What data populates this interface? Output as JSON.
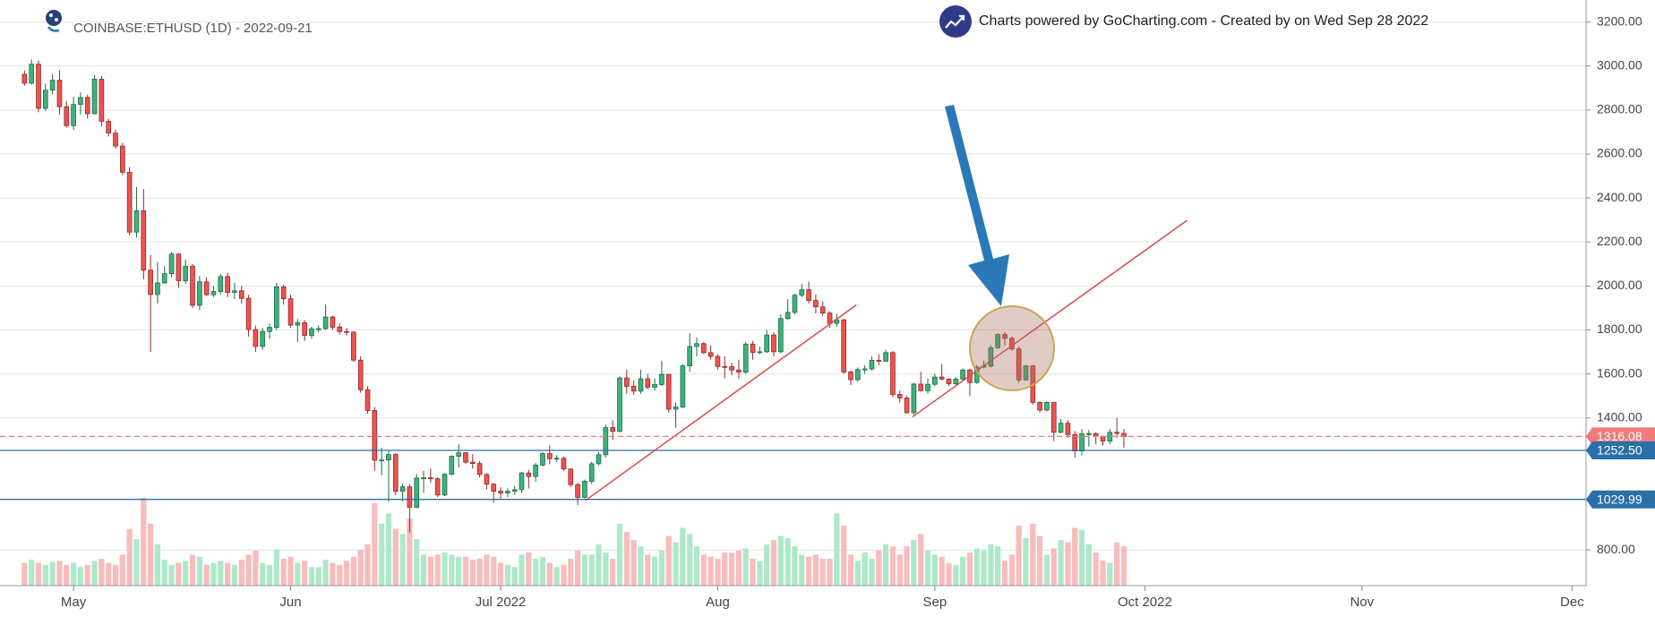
{
  "chart_data": {
    "type": "candlestick",
    "title": "COINBASE:ETHUSD (1D) - 2022-09-21",
    "credit": "Charts powered by GoCharting.com - Created by  on Wed Sep 28 2022",
    "open": [
      2962,
      2922,
      3008,
      2808,
      2890,
      2935,
      2815,
      2729,
      2825,
      2857,
      2783,
      2940,
      2749,
      2695,
      2636,
      2517,
      2245,
      2342,
      2072,
      1961,
      2014,
      2056,
      2145,
      2024,
      2090,
      1912,
      2019,
      1960,
      1975,
      2043,
      1971,
      1978,
      1944,
      1802,
      1725,
      1793,
      1812,
      1996,
      1942,
      1822,
      1833,
      1775,
      1805,
      1806,
      1859,
      1813,
      1793,
      1790,
      1663,
      1528,
      1434,
      1208,
      1209,
      1234,
      1067,
      1087,
      994,
      1127,
      1128,
      1124,
      1050,
      1144,
      1226,
      1242,
      1199,
      1193,
      1143,
      1099,
      1067,
      1059,
      1067,
      1074,
      1150,
      1134,
      1186,
      1238,
      1215,
      1217,
      1168,
      1097,
      1039,
      1112,
      1192,
      1233,
      1356,
      1339,
      1582,
      1544,
      1522,
      1578,
      1540,
      1552,
      1598,
      1440,
      1450,
      1637,
      1725,
      1738,
      1697,
      1680,
      1634,
      1633,
      1618,
      1608,
      1736,
      1698,
      1701,
      1777,
      1701,
      1852,
      1880,
      1958,
      1983,
      1934,
      1905,
      1877,
      1830,
      1846,
      1609,
      1574,
      1620,
      1623,
      1662,
      1658,
      1697,
      1507,
      1491,
      1424,
      1554,
      1524,
      1553,
      1586,
      1577,
      1556,
      1577,
      1618,
      1561,
      1631,
      1636,
      1719,
      1779,
      1762,
      1714,
      1573,
      1637,
      1471,
      1436,
      1471,
      1335,
      1376,
      1325,
      1250,
      1328,
      1329,
      1316,
      1295,
      1335,
      1330
    ],
    "high": [
      2980,
      3030,
      3025,
      2920,
      2965,
      2980,
      2840,
      2860,
      2880,
      2870,
      2960,
      2955,
      2760,
      2710,
      2650,
      2540,
      2450,
      2440,
      2140,
      2110,
      2090,
      2155,
      2150,
      2120,
      2100,
      2045,
      2040,
      2000,
      2055,
      2060,
      2015,
      2000,
      1960,
      1820,
      1810,
      1830,
      2015,
      2005,
      1960,
      1850,
      1845,
      1815,
      1820,
      1915,
      1865,
      1830,
      1810,
      1795,
      1680,
      1545,
      1450,
      1265,
      1250,
      1240,
      1100,
      1100,
      1145,
      1160,
      1170,
      1130,
      1150,
      1230,
      1280,
      1245,
      1235,
      1205,
      1150,
      1105,
      1085,
      1080,
      1090,
      1155,
      1165,
      1195,
      1245,
      1275,
      1230,
      1225,
      1170,
      1105,
      1120,
      1200,
      1245,
      1370,
      1390,
      1590,
      1620,
      1570,
      1620,
      1600,
      1580,
      1660,
      1600,
      1470,
      1645,
      1785,
      1765,
      1745,
      1730,
      1690,
      1680,
      1650,
      1665,
      1745,
      1750,
      1725,
      1800,
      1790,
      1870,
      1940,
      1965,
      2010,
      2020,
      1960,
      1930,
      1885,
      1875,
      1850,
      1615,
      1630,
      1640,
      1680,
      1690,
      1710,
      1705,
      1525,
      1500,
      1560,
      1610,
      1580,
      1600,
      1645,
      1580,
      1585,
      1625,
      1625,
      1640,
      1660,
      1730,
      1785,
      1790,
      1770,
      1725,
      1640,
      1640,
      1475,
      1475,
      1472,
      1395,
      1390,
      1340,
      1350,
      1345,
      1335,
      1320,
      1350,
      1400,
      1350
    ],
    "low": [
      2910,
      2915,
      2790,
      2795,
      2870,
      2780,
      2720,
      2710,
      2780,
      2760,
      2780,
      2725,
      2680,
      2625,
      2505,
      2230,
      2220,
      2030,
      1700,
      1920,
      2010,
      2040,
      1990,
      2010,
      1900,
      1890,
      1955,
      1950,
      1960,
      1950,
      1940,
      1920,
      1770,
      1700,
      1710,
      1760,
      1800,
      1915,
      1810,
      1745,
      1750,
      1760,
      1790,
      1800,
      1800,
      1780,
      1775,
      1655,
      1515,
      1420,
      1160,
      1140,
      1020,
      1050,
      1020,
      880,
      990,
      1060,
      1105,
      1040,
      1045,
      1140,
      1175,
      1190,
      1170,
      1130,
      1075,
      1015,
      1030,
      1040,
      1050,
      1060,
      1080,
      1110,
      1180,
      1190,
      1200,
      1160,
      1085,
      1005,
      1035,
      1100,
      1185,
      1220,
      1300,
      1335,
      1510,
      1505,
      1510,
      1530,
      1525,
      1545,
      1425,
      1355,
      1445,
      1610,
      1680,
      1690,
      1665,
      1620,
      1580,
      1595,
      1580,
      1600,
      1665,
      1690,
      1695,
      1680,
      1695,
      1845,
      1870,
      1950,
      1920,
      1875,
      1865,
      1810,
      1815,
      1600,
      1550,
      1565,
      1600,
      1615,
      1640,
      1655,
      1495,
      1470,
      1420,
      1415,
      1520,
      1510,
      1545,
      1570,
      1545,
      1550,
      1570,
      1500,
      1555,
      1625,
      1630,
      1715,
      1730,
      1705,
      1560,
      1570,
      1460,
      1425,
      1430,
      1295,
      1330,
      1310,
      1220,
      1230,
      1270,
      1280,
      1275,
      1280,
      1310,
      1265
    ],
    "close": [
      2922,
      3008,
      2808,
      2890,
      2935,
      2815,
      2729,
      2825,
      2857,
      2783,
      2940,
      2749,
      2695,
      2636,
      2517,
      2245,
      2342,
      2072,
      1961,
      2014,
      2056,
      2145,
      2024,
      2090,
      1912,
      2019,
      1960,
      1975,
      2043,
      1971,
      1978,
      1944,
      1802,
      1725,
      1793,
      1812,
      1996,
      1942,
      1822,
      1833,
      1775,
      1805,
      1806,
      1859,
      1813,
      1793,
      1790,
      1663,
      1528,
      1434,
      1208,
      1209,
      1234,
      1067,
      1087,
      994,
      1127,
      1128,
      1124,
      1050,
      1144,
      1226,
      1242,
      1199,
      1193,
      1143,
      1099,
      1067,
      1059,
      1067,
      1074,
      1150,
      1134,
      1186,
      1238,
      1215,
      1217,
      1168,
      1097,
      1039,
      1112,
      1192,
      1233,
      1356,
      1339,
      1582,
      1544,
      1522,
      1578,
      1540,
      1552,
      1598,
      1440,
      1450,
      1637,
      1725,
      1738,
      1697,
      1680,
      1634,
      1633,
      1618,
      1608,
      1736,
      1698,
      1701,
      1777,
      1701,
      1852,
      1880,
      1958,
      1983,
      1934,
      1905,
      1877,
      1830,
      1846,
      1609,
      1574,
      1620,
      1623,
      1662,
      1658,
      1697,
      1507,
      1491,
      1424,
      1554,
      1524,
      1553,
      1586,
      1577,
      1556,
      1577,
      1618,
      1561,
      1631,
      1636,
      1719,
      1779,
      1762,
      1714,
      1573,
      1637,
      1471,
      1436,
      1471,
      1335,
      1376,
      1325,
      1250,
      1328,
      1329,
      1316,
      1295,
      1335,
      1330,
      1316.08
    ],
    "volume": [
      22,
      25,
      22,
      20,
      23,
      24,
      20,
      22,
      18,
      20,
      24,
      26,
      22,
      20,
      30,
      55,
      45,
      85,
      60,
      40,
      25,
      20,
      22,
      24,
      30,
      28,
      20,
      22,
      24,
      22,
      20,
      25,
      30,
      34,
      22,
      20,
      35,
      26,
      28,
      22,
      24,
      18,
      18,
      25,
      22,
      20,
      24,
      28,
      35,
      40,
      80,
      60,
      70,
      55,
      50,
      65,
      45,
      30,
      28,
      30,
      32,
      30,
      28,
      28,
      25,
      26,
      30,
      28,
      22,
      20,
      18,
      30,
      32,
      26,
      28,
      22,
      18,
      20,
      26,
      34,
      30,
      30,
      40,
      32,
      26,
      60,
      52,
      44,
      38,
      30,
      28,
      34,
      48,
      42,
      56,
      50,
      38,
      30,
      28,
      26,
      32,
      32,
      34,
      36,
      26,
      24,
      40,
      44,
      48,
      46,
      38,
      30,
      28,
      30,
      26,
      26,
      70,
      58,
      30,
      24,
      32,
      26,
      34,
      40,
      38,
      30,
      38,
      44,
      50,
      34,
      30,
      28,
      22,
      20,
      28,
      32,
      36,
      34,
      40,
      38,
      24,
      30,
      58,
      46,
      60,
      48,
      30,
      36,
      44,
      42,
      56,
      54,
      40,
      32,
      24,
      22,
      42,
      38
    ],
    "up_color": "#3fb27f",
    "up_border": "#1e6b45",
    "down_color": "#ef5350",
    "down_border": "#8b2b2b",
    "volume_up_color": "#aee8cb",
    "volume_down_color": "#f8bcbc",
    "xlim": [
      -3.5,
      223
    ],
    "xticks": [
      {
        "value": 7,
        "label": "May"
      },
      {
        "value": 38,
        "label": "Jun"
      },
      {
        "value": 68,
        "label": "Jul 2022"
      },
      {
        "value": 99,
        "label": "Aug"
      },
      {
        "value": 130,
        "label": "Sep"
      },
      {
        "value": 160,
        "label": "Oct 2022"
      },
      {
        "value": 191,
        "label": "Nov"
      },
      {
        "value": 221,
        "label": "Dec"
      }
    ],
    "ylim": [
      638,
      3300
    ],
    "yticks": [
      {
        "value": 800,
        "label": "800.00"
      },
      {
        "value": 1400,
        "label": "1400.00"
      },
      {
        "value": 1600,
        "label": "1600.00"
      },
      {
        "value": 1800,
        "label": "1800.00"
      },
      {
        "value": 2000,
        "label": "2000.00"
      },
      {
        "value": 2200,
        "label": "2200.00"
      },
      {
        "value": 2400,
        "label": "2400.00"
      },
      {
        "value": 2600,
        "label": "2600.00"
      },
      {
        "value": 2800,
        "label": "2800.00"
      },
      {
        "value": 3000,
        "label": "3000.00"
      },
      {
        "value": 3200,
        "label": "3200.00"
      }
    ],
    "grid": true,
    "hlines": [
      {
        "value": 1316.08,
        "label": "1316.08",
        "color": "#f07b7b",
        "dashed": true
      },
      {
        "value": 1252.5,
        "label": "1252.50",
        "color": "#2a6fa8",
        "dashed": false
      },
      {
        "value": 1029.99,
        "label": "1029.99",
        "color": "#2a6fa8",
        "dashed": false
      }
    ],
    "trendlines": [
      {
        "x": [
          80.1,
          118.8
        ],
        "y": [
          1025,
          1914
        ],
        "color": "#e04848"
      },
      {
        "x": [
          126.8,
          166
        ],
        "y": [
          1405,
          2298
        ],
        "color": "#e04848"
      }
    ]
  }
}
